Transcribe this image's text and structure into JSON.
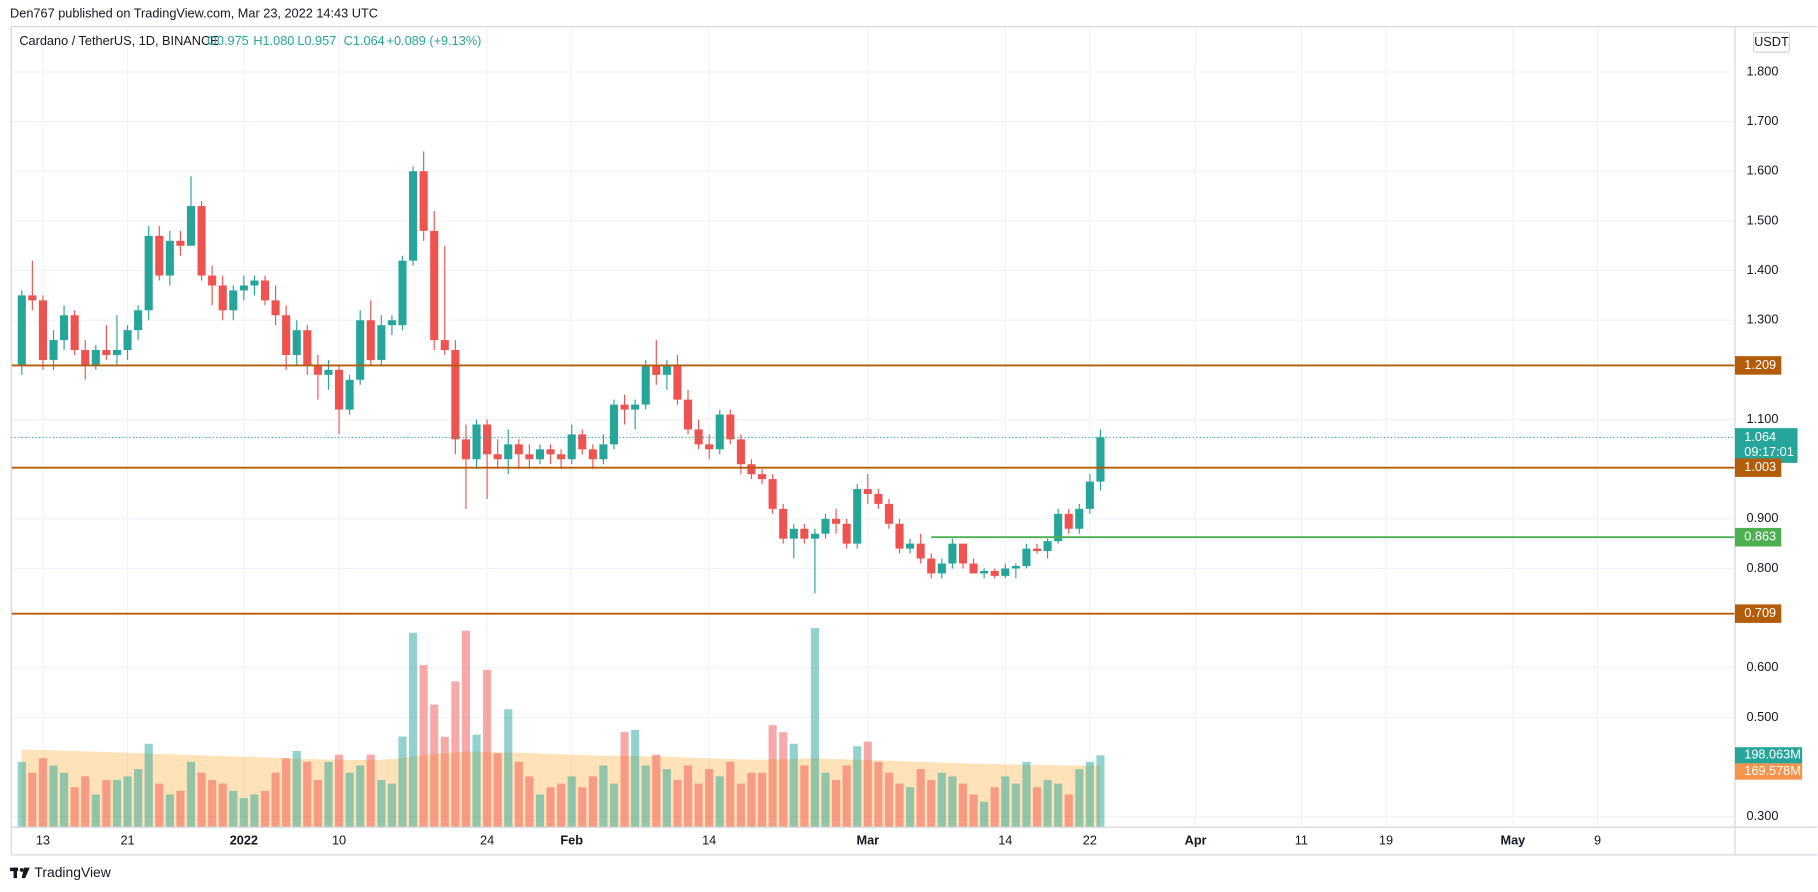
{
  "chart_data": {
    "type": "candlestick",
    "header": "Den767 published on TradingView.com, Mar 23, 2022 14:43 UTC",
    "symbol": "Cardano / TetherUS, 1D, BINANCE",
    "legend_values": [
      "O0.975",
      "H1.080",
      "L0.957",
      "C1.064",
      "+0.089 (+9.13%)"
    ],
    "currency": "USDT",
    "countdown": "09:17:01",
    "brand": "TradingView",
    "colors": {
      "up": "#26a69a",
      "down": "#ef5350"
    },
    "x": [
      "2021-12-11",
      "2021-12-12",
      "2021-12-13",
      "2021-12-14",
      "2021-12-15",
      "2021-12-16",
      "2021-12-17",
      "2021-12-18",
      "2021-12-19",
      "2021-12-20",
      "2021-12-21",
      "2021-12-22",
      "2021-12-23",
      "2021-12-24",
      "2021-12-25",
      "2021-12-26",
      "2021-12-27",
      "2021-12-28",
      "2021-12-29",
      "2021-12-30",
      "2021-12-31",
      "2022-01-01",
      "2022-01-02",
      "2022-01-03",
      "2022-01-04",
      "2022-01-05",
      "2022-01-06",
      "2022-01-07",
      "2022-01-08",
      "2022-01-09",
      "2022-01-10",
      "2022-01-11",
      "2022-01-12",
      "2022-01-13",
      "2022-01-14",
      "2022-01-15",
      "2022-01-16",
      "2022-01-17",
      "2022-01-18",
      "2022-01-19",
      "2022-01-20",
      "2022-01-21",
      "2022-01-22",
      "2022-01-23",
      "2022-01-24",
      "2022-01-25",
      "2022-01-26",
      "2022-01-27",
      "2022-01-28",
      "2022-01-29",
      "2022-01-30",
      "2022-01-31",
      "2022-02-01",
      "2022-02-02",
      "2022-02-03",
      "2022-02-04",
      "2022-02-05",
      "2022-02-06",
      "2022-02-07",
      "2022-02-08",
      "2022-02-09",
      "2022-02-10",
      "2022-02-11",
      "2022-02-12",
      "2022-02-13",
      "2022-02-14",
      "2022-02-15",
      "2022-02-16",
      "2022-02-17",
      "2022-02-18",
      "2022-02-19",
      "2022-02-20",
      "2022-02-21",
      "2022-02-22",
      "2022-02-23",
      "2022-02-24",
      "2022-02-25",
      "2022-02-26",
      "2022-02-27",
      "2022-02-28",
      "2022-03-01",
      "2022-03-02",
      "2022-03-03",
      "2022-03-04",
      "2022-03-05",
      "2022-03-06",
      "2022-03-07",
      "2022-03-08",
      "2022-03-09",
      "2022-03-10",
      "2022-03-11",
      "2022-03-12",
      "2022-03-13",
      "2022-03-14",
      "2022-03-15",
      "2022-03-16",
      "2022-03-17",
      "2022-03-18",
      "2022-03-19",
      "2022-03-20",
      "2022-03-21",
      "2022-03-22",
      "2022-03-23"
    ],
    "open": [
      1.21,
      1.35,
      1.34,
      1.22,
      1.26,
      1.31,
      1.24,
      1.21,
      1.24,
      1.23,
      1.24,
      1.28,
      1.32,
      1.47,
      1.39,
      1.46,
      1.45,
      1.53,
      1.39,
      1.37,
      1.32,
      1.36,
      1.37,
      1.38,
      1.34,
      1.31,
      1.23,
      1.28,
      1.21,
      1.19,
      1.2,
      1.12,
      1.18,
      1.3,
      1.22,
      1.29,
      1.29,
      1.42,
      1.6,
      1.48,
      1.26,
      1.24,
      1.06,
      1.02,
      1.09,
      1.03,
      1.02,
      1.05,
      1.03,
      1.02,
      1.04,
      1.03,
      1.02,
      1.07,
      1.04,
      1.02,
      1.05,
      1.13,
      1.12,
      1.13,
      1.21,
      1.19,
      1.21,
      1.14,
      1.08,
      1.05,
      1.04,
      1.11,
      1.06,
      1.01,
      0.99,
      0.98,
      0.92,
      0.86,
      0.88,
      0.86,
      0.87,
      0.9,
      0.89,
      0.85,
      0.96,
      0.95,
      0.93,
      0.89,
      0.84,
      0.85,
      0.82,
      0.79,
      0.81,
      0.85,
      0.81,
      0.79,
      0.795,
      0.785,
      0.8,
      0.805,
      0.84,
      0.835,
      0.855,
      0.91,
      0.88,
      0.92,
      0.975
    ],
    "high": [
      1.36,
      1.42,
      1.35,
      1.28,
      1.33,
      1.32,
      1.26,
      1.25,
      1.29,
      1.31,
      1.29,
      1.33,
      1.49,
      1.49,
      1.48,
      1.48,
      1.59,
      1.54,
      1.41,
      1.39,
      1.37,
      1.39,
      1.39,
      1.39,
      1.37,
      1.33,
      1.3,
      1.29,
      1.23,
      1.22,
      1.21,
      1.19,
      1.32,
      1.34,
      1.31,
      1.31,
      1.43,
      1.61,
      1.64,
      1.52,
      1.45,
      1.26,
      1.09,
      1.1,
      1.1,
      1.06,
      1.08,
      1.06,
      1.05,
      1.05,
      1.05,
      1.04,
      1.09,
      1.08,
      1.05,
      1.07,
      1.14,
      1.15,
      1.14,
      1.22,
      1.26,
      1.22,
      1.23,
      1.16,
      1.1,
      1.07,
      1.12,
      1.12,
      1.07,
      1.02,
      1.0,
      0.99,
      0.93,
      0.89,
      0.89,
      0.88,
      0.91,
      0.92,
      0.9,
      0.97,
      0.99,
      0.96,
      0.94,
      0.9,
      0.86,
      0.87,
      0.83,
      0.82,
      0.86,
      0.85,
      0.82,
      0.8,
      0.8,
      0.81,
      0.81,
      0.85,
      0.85,
      0.86,
      0.92,
      0.92,
      0.93,
      0.99,
      1.08
    ],
    "low": [
      1.19,
      1.32,
      1.2,
      1.2,
      1.24,
      1.23,
      1.18,
      1.2,
      1.22,
      1.21,
      1.22,
      1.26,
      1.3,
      1.38,
      1.37,
      1.43,
      1.45,
      1.38,
      1.33,
      1.3,
      1.3,
      1.34,
      1.35,
      1.33,
      1.29,
      1.2,
      1.21,
      1.19,
      1.14,
      1.16,
      1.07,
      1.11,
      1.17,
      1.21,
      1.21,
      1.27,
      1.28,
      1.41,
      1.46,
      1.24,
      1.23,
      1.03,
      0.92,
      1.0,
      0.94,
      1.0,
      0.99,
      1.0,
      1.0,
      1.01,
      1.01,
      1.0,
      1.01,
      1.03,
      1.0,
      1.01,
      1.04,
      1.09,
      1.08,
      1.12,
      1.17,
      1.16,
      1.13,
      1.07,
      1.04,
      1.02,
      1.03,
      1.05,
      0.99,
      0.98,
      0.97,
      0.91,
      0.85,
      0.82,
      0.85,
      0.75,
      0.86,
      0.87,
      0.84,
      0.84,
      0.93,
      0.92,
      0.88,
      0.83,
      0.83,
      0.81,
      0.78,
      0.78,
      0.8,
      0.8,
      0.79,
      0.78,
      0.78,
      0.78,
      0.78,
      0.8,
      0.83,
      0.82,
      0.85,
      0.87,
      0.87,
      0.91,
      0.957
    ],
    "close": [
      1.35,
      1.34,
      1.22,
      1.26,
      1.31,
      1.24,
      1.21,
      1.24,
      1.23,
      1.24,
      1.28,
      1.32,
      1.47,
      1.39,
      1.46,
      1.45,
      1.53,
      1.39,
      1.37,
      1.32,
      1.36,
      1.37,
      1.38,
      1.34,
      1.31,
      1.23,
      1.28,
      1.21,
      1.19,
      1.2,
      1.12,
      1.18,
      1.3,
      1.22,
      1.29,
      1.3,
      1.42,
      1.6,
      1.48,
      1.26,
      1.24,
      1.06,
      1.02,
      1.09,
      1.03,
      1.02,
      1.05,
      1.03,
      1.02,
      1.04,
      1.03,
      1.02,
      1.07,
      1.04,
      1.02,
      1.05,
      1.13,
      1.12,
      1.13,
      1.21,
      1.19,
      1.21,
      1.14,
      1.08,
      1.05,
      1.04,
      1.11,
      1.06,
      1.01,
      0.99,
      0.98,
      0.92,
      0.86,
      0.88,
      0.86,
      0.87,
      0.9,
      0.89,
      0.85,
      0.96,
      0.95,
      0.93,
      0.89,
      0.84,
      0.85,
      0.82,
      0.79,
      0.81,
      0.85,
      0.81,
      0.79,
      0.795,
      0.785,
      0.8,
      0.805,
      0.84,
      0.835,
      0.855,
      0.91,
      0.88,
      0.92,
      0.975,
      1.064
    ],
    "volume": {
      "color_up": "rgba(38,166,154,0.5)",
      "color_down": "rgba(239,83,80,0.5)",
      "label": "198.063M",
      "values": [
        180,
        150,
        190,
        170,
        150,
        110,
        140,
        90,
        130,
        130,
        140,
        160,
        230,
        120,
        90,
        100,
        180,
        150,
        130,
        120,
        100,
        80,
        90,
        100,
        150,
        190,
        210,
        180,
        130,
        180,
        200,
        150,
        170,
        200,
        130,
        120,
        250,
        536,
        447,
        338,
        249,
        402,
        542,
        255,
        434,
        204,
        325,
        180,
        140,
        90,
        110,
        120,
        140,
        110,
        140,
        170,
        120,
        262,
        268,
        170,
        200,
        160,
        130,
        170,
        120,
        160,
        140,
        180,
        120,
        150,
        150,
        281,
        262,
        230,
        170,
        549,
        150,
        130,
        170,
        223,
        236,
        180,
        150,
        120,
        110,
        160,
        130,
        150,
        140,
        120,
        90,
        70,
        110,
        140,
        120,
        180,
        110,
        130,
        120,
        90,
        160,
        180,
        198.063
      ]
    },
    "volume_ma": {
      "color": "rgba(255,152,0,0.28)",
      "label_color": "#f7944b",
      "label": "169.578M",
      "values": [
        214,
        213,
        213,
        212,
        211,
        210,
        209,
        208,
        207,
        206,
        205,
        204,
        203,
        202,
        201,
        200,
        199,
        198,
        197,
        196,
        195,
        194,
        193,
        192,
        191,
        190,
        189,
        188,
        187,
        186,
        186,
        185,
        185,
        185,
        186,
        188,
        190,
        195,
        199,
        202,
        204,
        206,
        208,
        208,
        207,
        206,
        206,
        205,
        204,
        203,
        202,
        201,
        200,
        199,
        198,
        197,
        197,
        196,
        196,
        195,
        195,
        194,
        193,
        192,
        191,
        190,
        189,
        188,
        187,
        186,
        186,
        186,
        187,
        188,
        190,
        190,
        189,
        188,
        187,
        186,
        185,
        184,
        183,
        182,
        181,
        180,
        179,
        178,
        177,
        176,
        175,
        174,
        174,
        173,
        173,
        172,
        172,
        171,
        171,
        170,
        170,
        169.8,
        169.578
      ]
    },
    "levels": [
      {
        "value": 1.209,
        "color": "#b35c0a"
      },
      {
        "value": 1.003,
        "color": "#b35c0a"
      },
      {
        "value": 0.863,
        "color": "#4caf50",
        "from": "2022-03-07"
      },
      {
        "value": 0.709,
        "color": "#b35c0a"
      }
    ],
    "xlim": [
      "2021-12-10",
      "2022-05-22"
    ],
    "xticks": [
      {
        "value": "2021-12-13",
        "label": "13"
      },
      {
        "value": "2021-12-21",
        "label": "21"
      },
      {
        "value": "2022-01-01",
        "label": "2022"
      },
      {
        "value": "2022-01-10",
        "label": "10"
      },
      {
        "value": "2022-01-24",
        "label": "24"
      },
      {
        "value": "2022-02-01",
        "label": "Feb"
      },
      {
        "value": "2022-02-14",
        "label": "14"
      },
      {
        "value": "2022-03-01",
        "label": "Mar"
      },
      {
        "value": "2022-03-14",
        "label": "14"
      },
      {
        "value": "2022-03-22",
        "label": "22"
      },
      {
        "value": "2022-04-01",
        "label": "Apr"
      },
      {
        "value": "2022-04-11",
        "label": "11"
      },
      {
        "value": "2022-04-19",
        "label": "19"
      },
      {
        "value": "2022-05-01",
        "label": "May"
      },
      {
        "value": "2022-05-09",
        "label": "9"
      }
    ],
    "ylim": [
      0.279,
      1.889
    ],
    "yticks": [
      {
        "value": 1.8,
        "label": "1.800"
      },
      {
        "value": 1.7,
        "label": "1.700"
      },
      {
        "value": 1.6,
        "label": "1.600"
      },
      {
        "value": 1.5,
        "label": "1.500"
      },
      {
        "value": 1.4,
        "label": "1.400"
      },
      {
        "value": 1.3,
        "label": "1.300"
      },
      {
        "value": 1.1,
        "label": "1.100"
      },
      {
        "value": 0.9,
        "label": "0.900"
      },
      {
        "value": 0.8,
        "label": "0.800"
      },
      {
        "value": 0.6,
        "label": "0.600"
      },
      {
        "value": 0.5,
        "label": "0.500"
      },
      {
        "value": 0.3,
        "label": "0.300"
      }
    ],
    "grid": true
  }
}
